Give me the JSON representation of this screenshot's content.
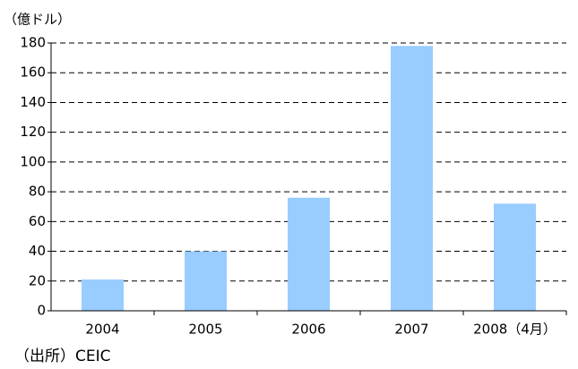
{
  "chart_data": {
    "type": "bar",
    "y_axis_label": "（億ドル）",
    "source": "（出所）CEIC",
    "categories": [
      "2004",
      "2005",
      "2006",
      "2007",
      "2008（4月）"
    ],
    "values": [
      21,
      40,
      76,
      178,
      72
    ],
    "color": "#99ccff",
    "ylim": [
      0,
      180
    ],
    "yticks": [
      0,
      20,
      40,
      60,
      80,
      100,
      120,
      140,
      160,
      180
    ],
    "grid": true
  }
}
